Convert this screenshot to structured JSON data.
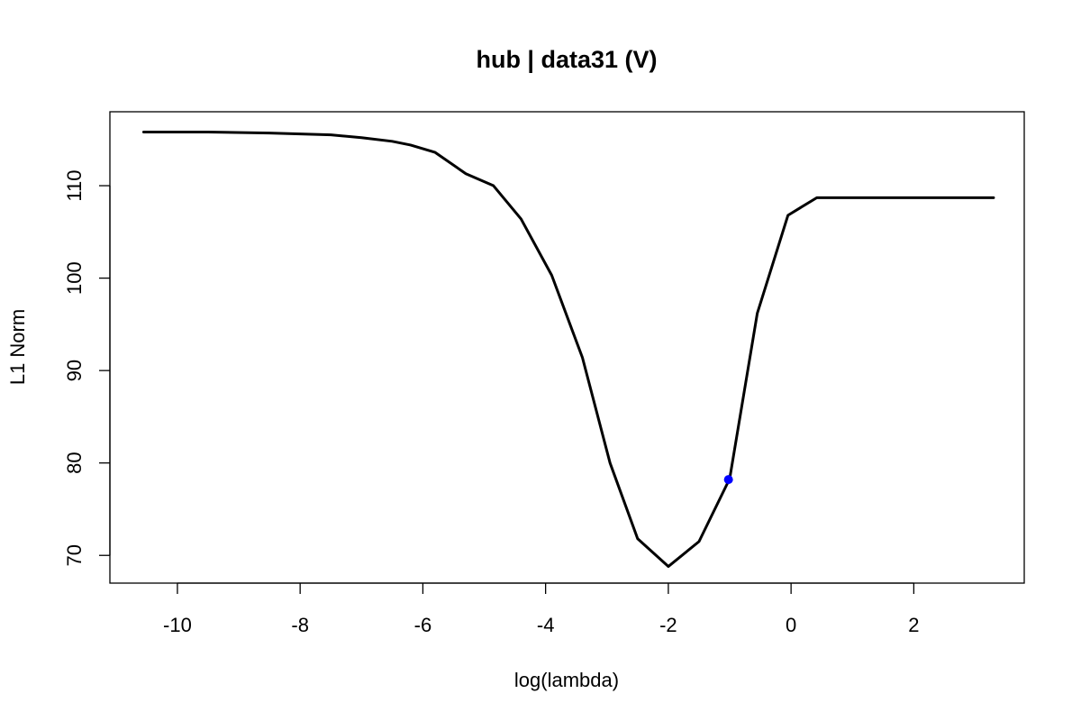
{
  "chart_data": {
    "type": "line",
    "title": "hub | data31 (V)",
    "xlabel": "log(lambda)",
    "ylabel": "L1 Norm",
    "xlim": [
      -11.1,
      3.8
    ],
    "ylim": [
      67,
      118
    ],
    "xticks": [
      -10,
      -8,
      -6,
      -4,
      -2,
      0,
      2
    ],
    "xtick_labels": [
      "-10",
      "-8",
      "-6",
      "-4",
      "-2",
      "0",
      "2"
    ],
    "yticks": [
      70,
      80,
      90,
      100,
      110
    ],
    "ytick_labels": [
      "70",
      "80",
      "90",
      "100",
      "110"
    ],
    "grid": false,
    "series": [
      {
        "color": "#000000",
        "x": [
          -10.55,
          -9.5,
          -8.5,
          -7.5,
          -7.0,
          -6.5,
          -6.2,
          -5.8,
          -5.3,
          -4.85,
          -4.4,
          -3.9,
          -3.4,
          -2.95,
          -2.5,
          -2.0,
          -1.5,
          -1.0,
          -0.55,
          -0.05,
          0.42,
          3.3
        ],
        "y": [
          115.8,
          115.8,
          115.7,
          115.5,
          115.2,
          114.8,
          114.4,
          113.6,
          111.3,
          110.0,
          106.4,
          100.3,
          91.4,
          80.0,
          71.8,
          68.8,
          71.5,
          78.3,
          96.2,
          106.8,
          108.7,
          108.7
        ]
      }
    ],
    "highlight_point": {
      "x": -1.02,
      "y": 78.2,
      "color": "#0000ff"
    }
  }
}
